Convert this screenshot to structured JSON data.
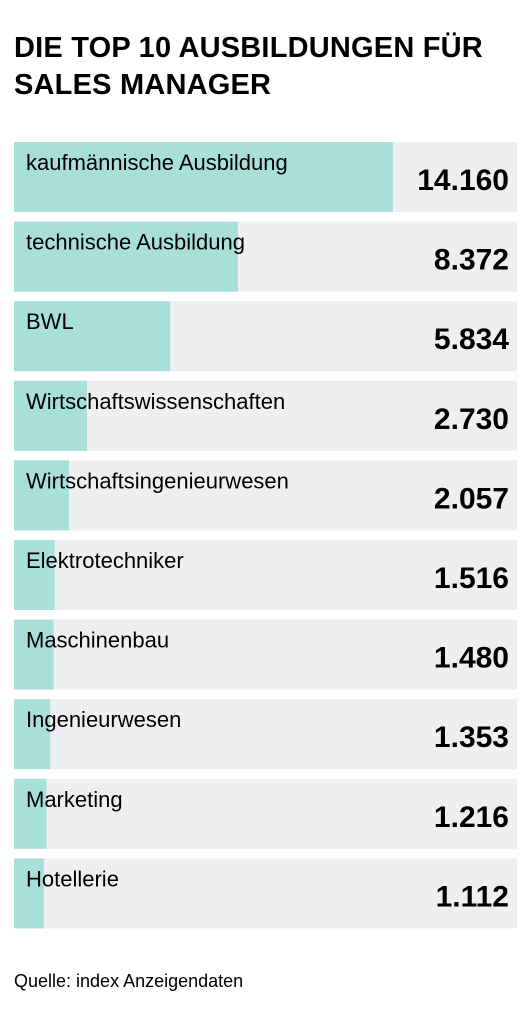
{
  "title": "Die Top 10 Ausbildungen für Sales Manager",
  "source": "Quelle: index Anzeigendaten",
  "colors": {
    "bar_fill": "#a8dfd9",
    "track": "#efeff1",
    "text": "#000000"
  },
  "chart_data": {
    "type": "bar",
    "orientation": "horizontal",
    "title": "Die Top 10 Ausbildungen für Sales Manager",
    "categories": [
      "kaufmännische Ausbildung",
      "technische Ausbildung",
      "BWL",
      "Wirtschaftswissenschaften",
      "Wirtschaftsingenieurwesen",
      "Elektrotechniker",
      "Maschinenbau",
      "Ingenieurwesen",
      "Marketing",
      "Hotellerie"
    ],
    "values": [
      14160,
      8372,
      5834,
      2730,
      2057,
      1516,
      1480,
      1353,
      1216,
      1112
    ],
    "value_labels": [
      "14.160",
      "8.372",
      "5.834",
      "2.730",
      "2.057",
      "1.516",
      "1.480",
      "1.353",
      "1.216",
      "1.112"
    ],
    "xlim": [
      0,
      18800
    ],
    "grid": false,
    "legend": "none"
  }
}
